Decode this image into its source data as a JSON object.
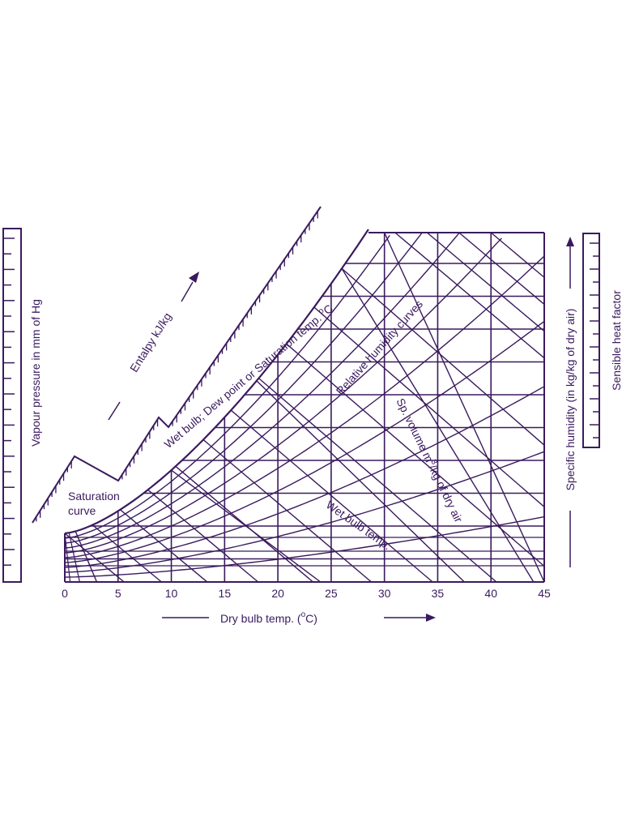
{
  "chart_data": {
    "type": "psychrometric-chart",
    "x_axis": {
      "ticks": [
        "0",
        "5",
        "10",
        "15",
        "20",
        "25",
        "30",
        "35",
        "40",
        "45"
      ],
      "label": "Dry bulb temp. (",
      "label_degree": "o",
      "label_unit": "C)",
      "range": [
        0,
        45
      ]
    },
    "labels": {
      "vapour_pressure": "Vapour pressure in mm of Hg",
      "enthalpy": "Entalpy kJ/kg",
      "saturation": "Wet bulb; Dew point or Saturation temp.",
      "saturation_degree": "o",
      "saturation_unit": "C",
      "saturation_curve_line1": "Saturation",
      "saturation_curve_line2": "curve",
      "relative_humidity": "Relative humidity curves",
      "sp_volume_a": "Sp. volume m",
      "sp_volume_sup": "3",
      "sp_volume_b": "/kg of dry air",
      "wet_bulb": "Wet bulb temp.",
      "specific_humidity": "Specific humidity (in kg/kg of dry air)",
      "sensible_heat": "Sensible heat factor"
    },
    "ink_color": "#3a1a5e"
  }
}
